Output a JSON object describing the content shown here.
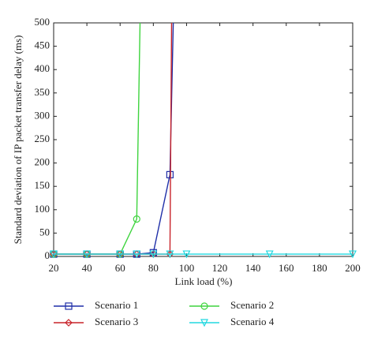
{
  "chart_data": {
    "type": "line",
    "x_label": "Link load (%)",
    "y_label": "Standard deviation of IP packet transfer delay (ms)",
    "xlim": [
      20,
      200
    ],
    "ylim": [
      0,
      500
    ],
    "xticks": [
      20,
      40,
      60,
      80,
      100,
      120,
      140,
      160,
      180,
      200
    ],
    "yticks": [
      0,
      50,
      100,
      150,
      200,
      250,
      300,
      350,
      400,
      450,
      500
    ],
    "series": [
      {
        "name": "Scenario 1",
        "color": "#1f2fa8",
        "marker": "square",
        "x": [
          20,
          40,
          60,
          70,
          80,
          90,
          92
        ],
        "values": [
          5,
          5,
          5,
          5,
          8,
          175,
          500
        ]
      },
      {
        "name": "Scenario 2",
        "color": "#3ed43e",
        "marker": "circle",
        "x": [
          20,
          40,
          60,
          70,
          72
        ],
        "values": [
          5,
          5,
          5,
          80,
          500
        ]
      },
      {
        "name": "Scenario 3",
        "color": "#c8232a",
        "marker": "diamond",
        "x": [
          20,
          40,
          60,
          70,
          80,
          90,
          91
        ],
        "values": [
          5,
          5,
          5,
          5,
          5,
          5,
          500
        ]
      },
      {
        "name": "Scenario 4",
        "color": "#22d8e0",
        "marker": "triangle-down",
        "x": [
          20,
          40,
          60,
          70,
          80,
          90,
          100,
          150,
          200
        ],
        "values": [
          5,
          5,
          5,
          5,
          5,
          5,
          5,
          5,
          5
        ]
      }
    ]
  }
}
